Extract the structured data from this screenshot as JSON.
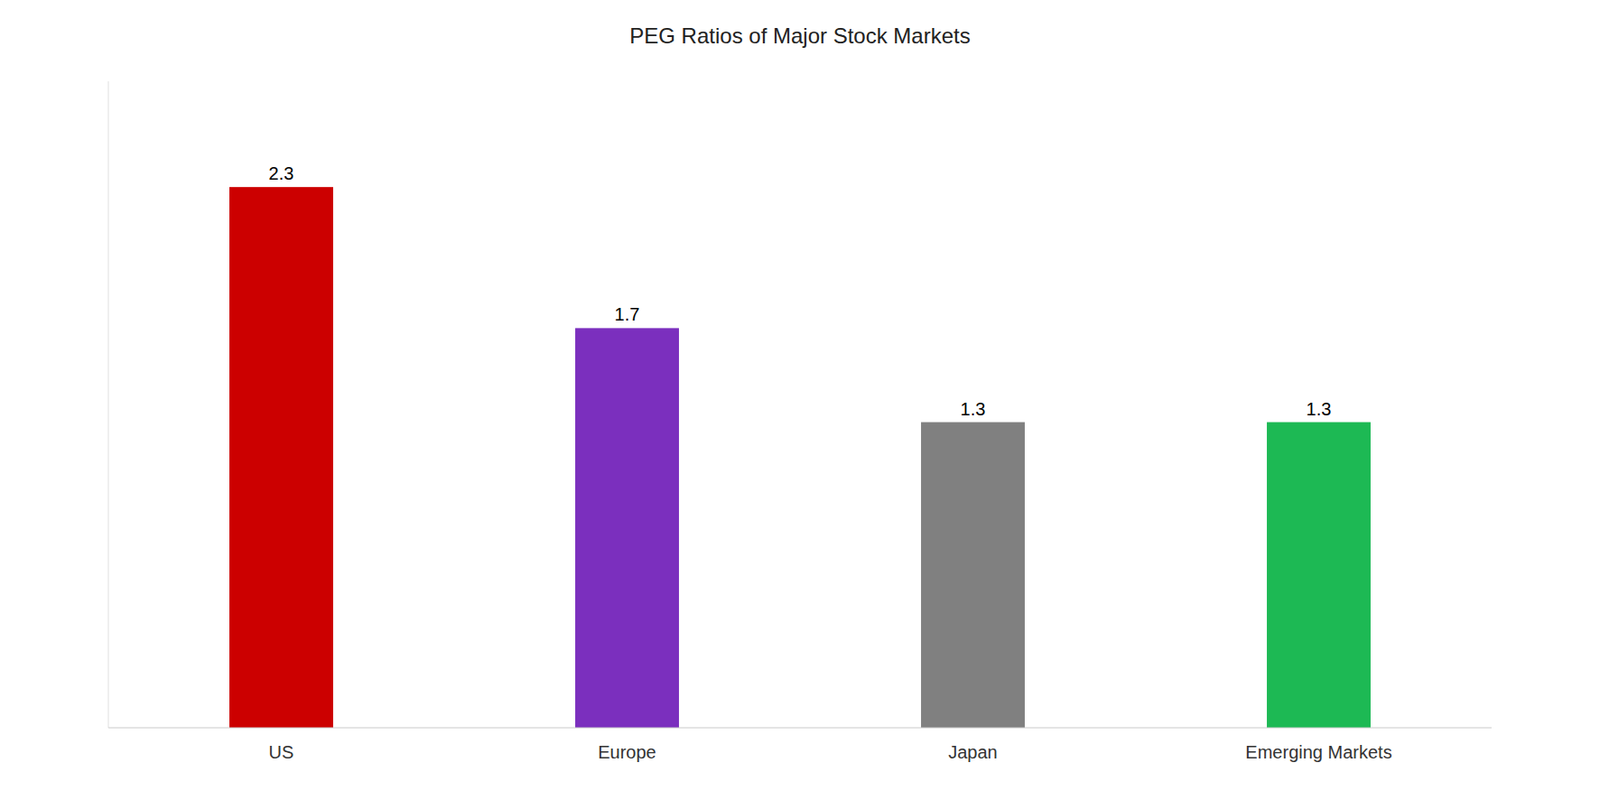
{
  "chart_data": {
    "type": "bar",
    "title": "PEG Ratios of Major Stock Markets",
    "categories": [
      "US",
      "Europe",
      "Japan",
      "Emerging Markets"
    ],
    "values": [
      2.3,
      1.7,
      1.3,
      1.3
    ],
    "colors": [
      "#cc0000",
      "#7b2fbe",
      "#808080",
      "#1db954"
    ],
    "ylim": [
      0,
      2.75
    ],
    "grid": false,
    "data_labels": true,
    "tick_labels": "x"
  }
}
